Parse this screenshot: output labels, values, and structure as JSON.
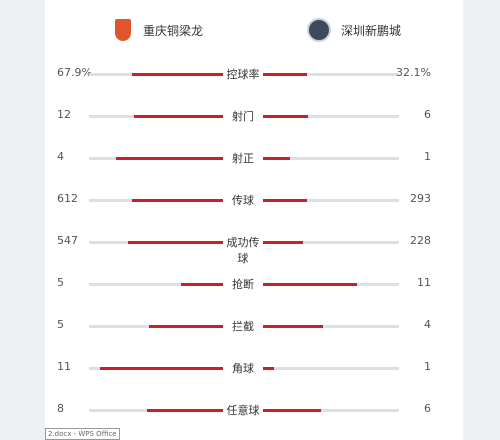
{
  "teams": {
    "home": {
      "name": "重庆铜梁龙",
      "icon": "shield-crest-icon"
    },
    "away": {
      "name": "深圳新鹏城",
      "icon": "round-badge-icon"
    }
  },
  "stats": [
    {
      "label": "控球率",
      "home": "67.9%",
      "away": "32.1%",
      "home_ratio": 0.679,
      "away_ratio": 0.321
    },
    {
      "label": "射门",
      "home": "12",
      "away": "6",
      "home_ratio": 0.667,
      "away_ratio": 0.333
    },
    {
      "label": "射正",
      "home": "4",
      "away": "1",
      "home_ratio": 0.8,
      "away_ratio": 0.2
    },
    {
      "label": "传球",
      "home": "612",
      "away": "293",
      "home_ratio": 0.676,
      "away_ratio": 0.324
    },
    {
      "label": "成功传球",
      "home": "547",
      "away": "228",
      "home_ratio": 0.706,
      "away_ratio": 0.294
    },
    {
      "label": "抢断",
      "home": "5",
      "away": "11",
      "home_ratio": 0.3125,
      "away_ratio": 0.6875
    },
    {
      "label": "拦截",
      "home": "5",
      "away": "4",
      "home_ratio": 0.556,
      "away_ratio": 0.444
    },
    {
      "label": "角球",
      "home": "11",
      "away": "1",
      "home_ratio": 0.917,
      "away_ratio": 0.083
    },
    {
      "label": "任意球",
      "home": "8",
      "away": "6",
      "home_ratio": 0.571,
      "away_ratio": 0.429
    }
  ],
  "footer": {
    "tag": "2.docx - WPS Office"
  },
  "colors": {
    "bar": "#c8202b",
    "track": "#dcdfe3"
  }
}
